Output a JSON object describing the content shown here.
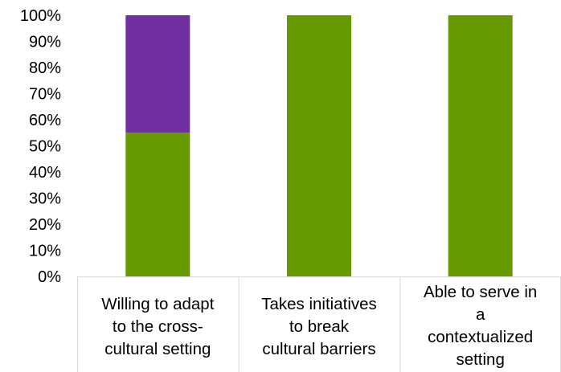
{
  "chart_data": {
    "type": "bar",
    "stacked": true,
    "title": "",
    "xlabel": "",
    "ylabel": "",
    "ylim": [
      0,
      100
    ],
    "y_ticks": [
      "0%",
      "10%",
      "20%",
      "30%",
      "40%",
      "50%",
      "60%",
      "70%",
      "80%",
      "90%",
      "100%"
    ],
    "grid": false,
    "legend": "none",
    "categories": [
      [
        "Willing to adapt",
        "to the cross-",
        "cultural setting"
      ],
      [
        "Takes initiatives",
        "to break",
        "cultural barriers"
      ],
      [
        "Able to serve in",
        "a",
        "contextualized",
        "setting"
      ]
    ],
    "series": [
      {
        "color": "#669900",
        "values": [
          55,
          100,
          100
        ]
      },
      {
        "color": "#7030a0",
        "values": [
          45,
          0,
          0
        ]
      }
    ]
  }
}
